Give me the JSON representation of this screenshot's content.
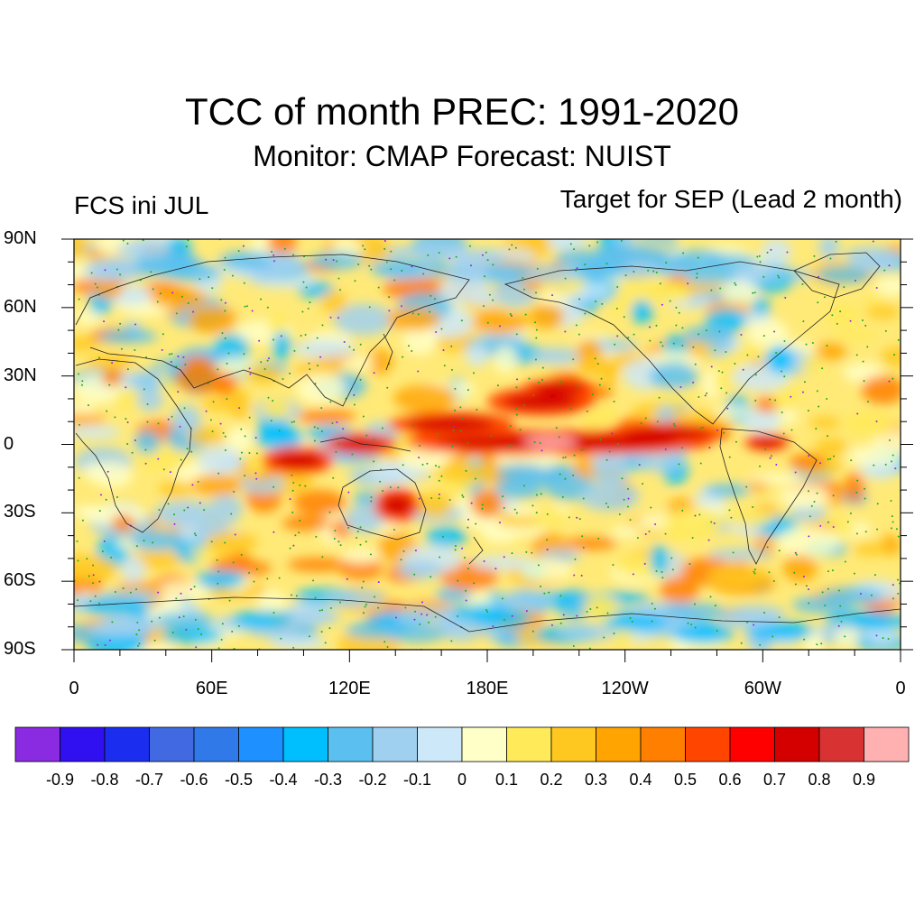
{
  "title": "TCC of month PREC: 1991-2020",
  "subtitle": "Monitor: CMAP   Forecast: NUIST",
  "left_label": "FCS ini JUL",
  "right_label": "Target for SEP (Lead 2 month)",
  "lat_labels": [
    "90N",
    "60N",
    "30N",
    "0",
    "30S",
    "60S",
    "90S"
  ],
  "lat_values": [
    90,
    60,
    30,
    0,
    -30,
    -60,
    -90
  ],
  "lon_labels": [
    "0",
    "60E",
    "120E",
    "180E",
    "120W",
    "60W",
    "0"
  ],
  "lon_values": [
    0,
    60,
    120,
    180,
    240,
    300,
    360
  ],
  "colorbar": {
    "colors": [
      "#8a2be2",
      "#3010f0",
      "#1b2ef0",
      "#4169e1",
      "#2f7ae8",
      "#1e90ff",
      "#00bfff",
      "#5bc0f0",
      "#a0d0f0",
      "#cde8f8",
      "#ffffc8",
      "#ffea5a",
      "#ffc820",
      "#ffa400",
      "#ff7f00",
      "#ff4500",
      "#ff0000",
      "#d40000",
      "#d83232",
      "#ffb0b0"
    ],
    "labels": [
      "-0.9",
      "-0.8",
      "-0.7",
      "-0.6",
      "-0.5",
      "-0.4",
      "-0.3",
      "-0.2",
      "-0.1",
      "0",
      "0.1",
      "0.2",
      "0.3",
      "0.4",
      "0.5",
      "0.6",
      "0.7",
      "0.8",
      "0.9"
    ]
  }
}
